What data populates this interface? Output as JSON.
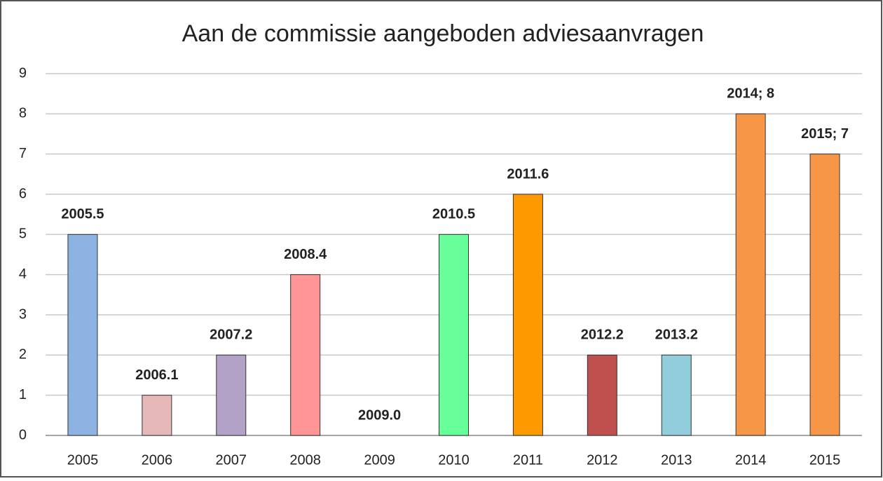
{
  "chart_data": {
    "type": "bar",
    "title": "Aan de commissie aangeboden adviesaanvragen",
    "categories": [
      "2005",
      "2006",
      "2007",
      "2008",
      "2009",
      "2010",
      "2011",
      "2012",
      "2013",
      "2014",
      "2015"
    ],
    "values": [
      5,
      1,
      2,
      4,
      0,
      5,
      6,
      2,
      2,
      8,
      7
    ],
    "value_labels": [
      "2005.5",
      "2006.1",
      "2007.2",
      "2008.4",
      "2009.0",
      "2010.5",
      "2011.6",
      "2012.2",
      "2013.2",
      "2014; 8",
      "2015; 7"
    ],
    "colors": [
      "#8db3e2",
      "#e6b9b8",
      "#b3a2c7",
      "#ff9595",
      "#ffffff",
      "#66ff99",
      "#ff9900",
      "#c0504d",
      "#92cddc",
      "#f79646",
      "#f79646"
    ],
    "ylim": [
      0,
      9
    ],
    "yticks": [
      0,
      1,
      2,
      3,
      4,
      5,
      6,
      7,
      8,
      9
    ],
    "grid": true
  }
}
